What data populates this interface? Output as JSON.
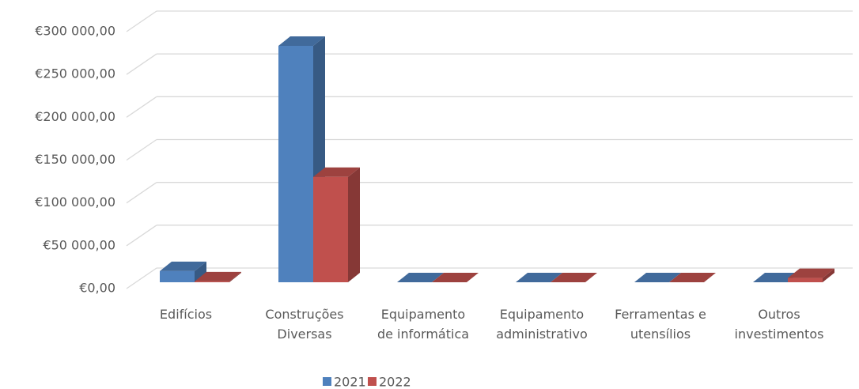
{
  "chart_data": {
    "type": "bar3d",
    "categories": [
      "Edifícios",
      "Construções\nDiversas",
      "Equipamento\nde informática",
      "Equipamento\nadministrativo",
      "Ferramentas e\nutensílios",
      "Outros\ninvestimentos"
    ],
    "series": [
      {
        "name": "2021",
        "color": "#4f81bd",
        "values": [
          13000,
          276000,
          0,
          0,
          0,
          0
        ]
      },
      {
        "name": "2022",
        "color": "#c0504d",
        "values": [
          1000,
          123000,
          0,
          0,
          0,
          5000
        ]
      }
    ],
    "ylim": [
      0,
      300000
    ],
    "yticks": [
      {
        "value": 0,
        "label": "€0,00"
      },
      {
        "value": 50000,
        "label": "€50 000,00"
      },
      {
        "value": 100000,
        "label": "€100 000,00"
      },
      {
        "value": 150000,
        "label": "€150 000,00"
      },
      {
        "value": 200000,
        "label": "€200 000,00"
      },
      {
        "value": 250000,
        "label": "€250 000,00"
      },
      {
        "value": 300000,
        "label": "€300 000,00"
      }
    ],
    "grid": true,
    "legend": "bottom"
  }
}
